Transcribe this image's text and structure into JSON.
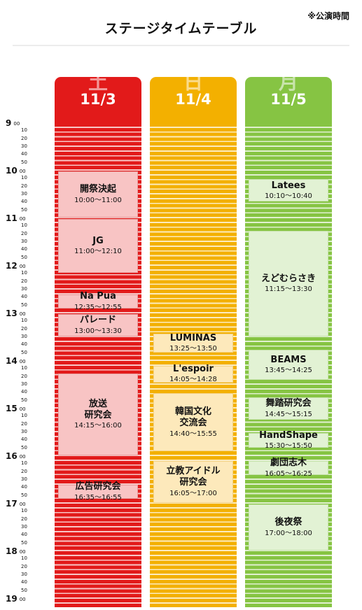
{
  "title": "ステージタイムテーブル",
  "note": "※公演時間",
  "days": [
    {
      "kanji": "土",
      "date": "11/3"
    },
    {
      "kanji": "日",
      "date": "11/4"
    },
    {
      "kanji": "月",
      "date": "11/5"
    }
  ],
  "hours": [
    "9",
    "10",
    "11",
    "12",
    "13",
    "14",
    "15",
    "16",
    "17",
    "18",
    "19"
  ],
  "minute_marks": [
    "00",
    "10",
    "20",
    "30",
    "40",
    "50"
  ],
  "events": {
    "sat": [
      {
        "name": "開祭決起",
        "time": "10:00〜11:00"
      },
      {
        "name": "JG",
        "time": "11:00〜12:10"
      },
      {
        "name": "Na Pua",
        "time": "12:35〜12:55"
      },
      {
        "name": "パレード",
        "time": "13:00〜13:30"
      },
      {
        "name": "放送\n研究会",
        "time": "14:15〜16:00"
      },
      {
        "name": "広告研究会",
        "time": "16:35〜16:55"
      }
    ],
    "sun": [
      {
        "name": "LUMINAS",
        "time": "13:25〜13:50"
      },
      {
        "name": "L'espoir",
        "time": "14:05〜14:28"
      },
      {
        "name": "韓国文化\n交流会",
        "time": "14:40〜15:55"
      },
      {
        "name": "立教アイドル\n研究会",
        "time": "16:05〜17:00"
      }
    ],
    "mon": [
      {
        "name": "Latees",
        "time": "10:10〜10:40"
      },
      {
        "name": "えどむらさき",
        "time": "11:15〜13:30"
      },
      {
        "name": "BEAMS",
        "time": "13:45〜14:25"
      },
      {
        "name": "舞踏研究会",
        "time": "14:45〜15:15"
      },
      {
        "name": "HandShape",
        "time": "15:30〜15:50"
      },
      {
        "name": "劇団志木",
        "time": "16:05〜16:25"
      },
      {
        "name": "後夜祭",
        "time": "17:00〜18:00"
      }
    ]
  }
}
